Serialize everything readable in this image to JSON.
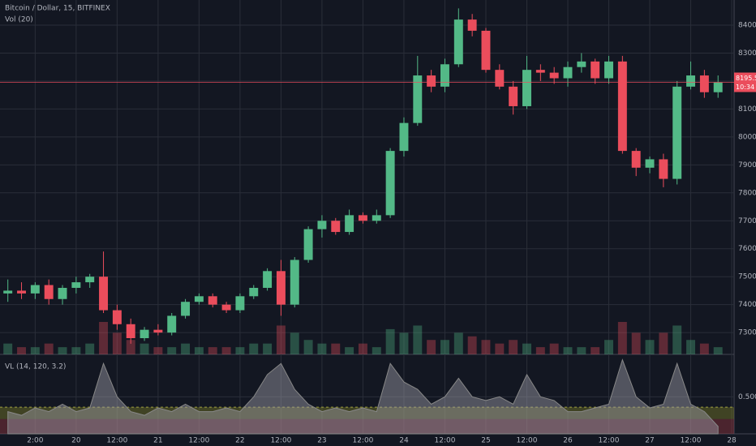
{
  "chart_data": {
    "type": "candlestick",
    "title": "Bitcoin / Dollar, 15, BITFINEX",
    "volume_label": "Vol (20)",
    "x": [
      -20,
      -16,
      -12,
      -8,
      -4,
      0,
      4,
      8,
      12,
      16,
      20,
      24,
      28,
      32,
      36,
      40,
      44,
      48,
      52,
      56,
      60,
      64,
      68,
      72,
      76,
      80,
      84,
      88,
      92,
      96,
      100,
      104,
      108,
      112,
      116,
      120,
      124,
      128,
      132,
      136,
      140,
      144,
      148,
      152,
      156,
      160,
      164,
      168,
      172,
      176,
      180,
      184,
      188
    ],
    "open": [
      7440,
      7450,
      7440,
      7470,
      7420,
      7460,
      7480,
      7500,
      7380,
      7330,
      7280,
      7310,
      7300,
      7360,
      7410,
      7430,
      7400,
      7380,
      7430,
      7460,
      7520,
      7400,
      7560,
      7670,
      7700,
      7660,
      7720,
      7700,
      7720,
      7950,
      8050,
      8220,
      8180,
      8260,
      8420,
      8380,
      8240,
      8180,
      8110,
      8240,
      8230,
      8210,
      8250,
      8270,
      8210,
      8270,
      7950,
      7890,
      7920,
      7850,
      8180,
      8220,
      8160
    ],
    "high": [
      7490,
      7480,
      7480,
      7490,
      7470,
      7500,
      7510,
      7590,
      7400,
      7350,
      7320,
      7330,
      7370,
      7420,
      7440,
      7440,
      7410,
      7440,
      7470,
      7530,
      7560,
      7570,
      7680,
      7720,
      7710,
      7740,
      7730,
      7740,
      7960,
      8070,
      8290,
      8240,
      8280,
      8460,
      8440,
      8390,
      8260,
      8200,
      8290,
      8260,
      8250,
      8270,
      8300,
      8280,
      8290,
      8290,
      7960,
      7930,
      7940,
      8200,
      8270,
      8240,
      8220
    ],
    "low": [
      7410,
      7420,
      7420,
      7400,
      7400,
      7440,
      7460,
      7370,
      7310,
      7260,
      7270,
      7290,
      7290,
      7350,
      7400,
      7390,
      7370,
      7370,
      7420,
      7450,
      7360,
      7390,
      7550,
      7640,
      7650,
      7650,
      7690,
      7690,
      7710,
      7930,
      8040,
      8160,
      8160,
      8250,
      8360,
      8230,
      8170,
      8080,
      8100,
      8200,
      8190,
      8180,
      8230,
      8190,
      8190,
      7940,
      7860,
      7870,
      7820,
      7830,
      8170,
      8140,
      8140
    ],
    "close": [
      7450,
      7440,
      7470,
      7420,
      7460,
      7480,
      7500,
      7380,
      7330,
      7280,
      7310,
      7300,
      7360,
      7410,
      7430,
      7400,
      7380,
      7430,
      7460,
      7520,
      7400,
      7560,
      7670,
      7700,
      7660,
      7720,
      7700,
      7720,
      7950,
      8050,
      8220,
      8180,
      8260,
      8420,
      8380,
      8240,
      8180,
      8110,
      8240,
      8230,
      8210,
      8250,
      8270,
      8210,
      8270,
      7950,
      7890,
      7920,
      7850,
      8180,
      8220,
      8160,
      8195.5
    ],
    "volume": [
      3,
      2,
      2,
      3,
      2,
      2,
      3,
      9,
      6,
      4,
      3,
      2,
      2,
      3,
      2,
      2,
      2,
      2,
      3,
      3,
      8,
      6,
      4,
      3,
      3,
      2,
      3,
      2,
      7,
      6,
      8,
      4,
      4,
      6,
      5,
      4,
      3,
      4,
      3,
      2,
      3,
      2,
      2,
      2,
      4,
      9,
      6,
      4,
      6,
      8,
      4,
      3,
      2
    ],
    "up_color": "#53b987",
    "down_color": "#eb4d5c",
    "ylim": [
      7222,
      8490
    ],
    "yticks": [
      {
        "value": 7300,
        "label": "7300.0"
      },
      {
        "value": 7400,
        "label": "7400.0"
      },
      {
        "value": 7500,
        "label": "7500.0"
      },
      {
        "value": 7600,
        "label": "7600.0"
      },
      {
        "value": 7700,
        "label": "7700.0"
      },
      {
        "value": 7800,
        "label": "7800.0"
      },
      {
        "value": 7900,
        "label": "7900.0"
      },
      {
        "value": 8000,
        "label": "8000.0"
      },
      {
        "value": 8100,
        "label": "8100.0"
      },
      {
        "value": 8200,
        "label": "8200.0"
      },
      {
        "value": 8300,
        "label": "8300.0"
      },
      {
        "value": 8400,
        "label": "8400.0"
      }
    ],
    "xlim": [
      -22.3,
      192.7
    ],
    "xticks": [
      {
        "value": -12,
        "label": "2:00"
      },
      {
        "value": 0,
        "label": "20"
      },
      {
        "value": 12,
        "label": "12:00"
      },
      {
        "value": 24,
        "label": "21"
      },
      {
        "value": 36,
        "label": "12:00"
      },
      {
        "value": 48,
        "label": "22"
      },
      {
        "value": 60,
        "label": "12:00"
      },
      {
        "value": 72,
        "label": "23"
      },
      {
        "value": 84,
        "label": "12:00"
      },
      {
        "value": 96,
        "label": "24"
      },
      {
        "value": 108,
        "label": "12:00"
      },
      {
        "value": 120,
        "label": "25"
      },
      {
        "value": 132,
        "label": "12:00"
      },
      {
        "value": 144,
        "label": "26"
      },
      {
        "value": 156,
        "label": "12:00"
      },
      {
        "value": 168,
        "label": "27"
      },
      {
        "value": 180,
        "label": "12:00"
      },
      {
        "value": 192,
        "label": "28"
      }
    ],
    "last_price": {
      "value": 8195.5,
      "label": "8195.5",
      "countdown": "10:34"
    },
    "grid": true,
    "indicator": {
      "name": "VL (14, 120, 3.2)",
      "values": [
        0.3,
        0.25,
        0.35,
        0.3,
        0.4,
        0.3,
        0.35,
        0.95,
        0.5,
        0.3,
        0.25,
        0.35,
        0.3,
        0.4,
        0.3,
        0.3,
        0.35,
        0.3,
        0.5,
        0.8,
        0.95,
        0.6,
        0.4,
        0.3,
        0.35,
        0.3,
        0.35,
        0.3,
        0.95,
        0.7,
        0.6,
        0.4,
        0.5,
        0.75,
        0.5,
        0.45,
        0.5,
        0.4,
        0.8,
        0.5,
        0.45,
        0.3,
        0.3,
        0.35,
        0.4,
        1.0,
        0.5,
        0.35,
        0.4,
        0.95,
        0.4,
        0.3,
        0.1
      ],
      "ylim": [
        0,
        1.04
      ],
      "yticks": [
        {
          "value": 0.5,
          "label": "0.5000"
        }
      ],
      "bands": [
        0.2,
        0.36
      ]
    }
  }
}
